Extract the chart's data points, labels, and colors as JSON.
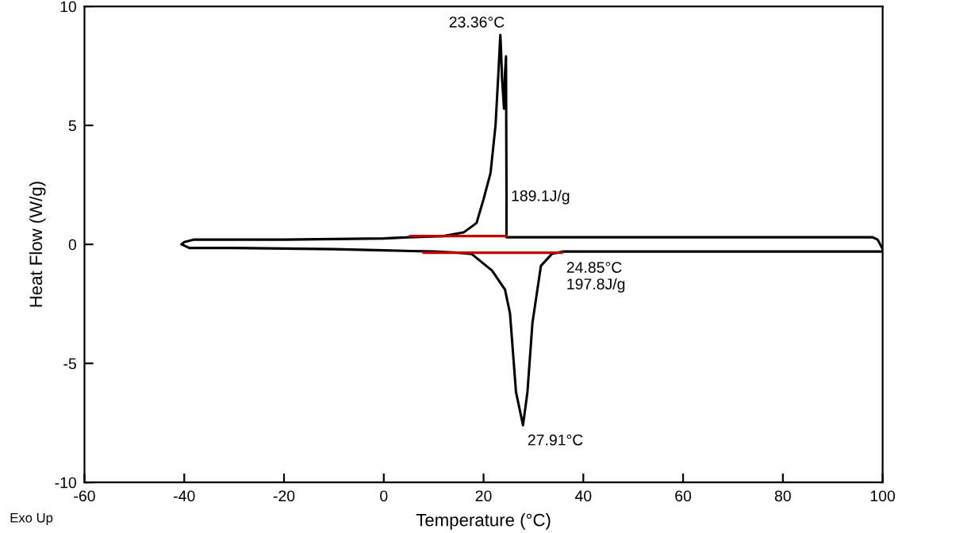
{
  "chart_data": {
    "type": "line",
    "xlabel": "Temperature (°C)",
    "ylabel": "Heat Flow (W/g)",
    "xlim": [
      -60,
      100
    ],
    "xticks": [
      -60,
      -40,
      -20,
      0,
      20,
      40,
      60,
      80,
      100
    ],
    "ylim": [
      -10,
      10
    ],
    "yticks": [
      -10,
      -5,
      0,
      5,
      10
    ],
    "grid": false,
    "legend": false,
    "marker": "none",
    "line_style": "solid",
    "series": [
      {
        "color": "#000000",
        "x": [
          100,
          99,
          98,
          90,
          70,
          50,
          35,
          26,
          24.6,
          24.6,
          24.5,
          24.3,
          24.1,
          23.7,
          23.5,
          23.36,
          23.0,
          22.4,
          21.4,
          20.0,
          18.6,
          16,
          12,
          5,
          0,
          -20,
          -38,
          -40,
          -40.5
        ],
        "values": [
          -0.2,
          0.2,
          0.3,
          0.3,
          0.3,
          0.3,
          0.3,
          0.3,
          0.3,
          2.1,
          7.9,
          7.2,
          5.7,
          7.0,
          8.2,
          8.8,
          7.3,
          5.0,
          3.0,
          1.9,
          0.9,
          0.5,
          0.35,
          0.3,
          0.25,
          0.2,
          0.2,
          0.1,
          0.0
        ]
      },
      {
        "color": "#000000",
        "x": [
          -40.5,
          -39,
          -30,
          -10,
          0,
          10,
          15,
          17.6,
          21.7,
          24.3,
          25.3,
          26.5,
          27.91,
          28.8,
          29.8,
          31.5,
          33.7,
          36,
          40,
          60,
          80,
          100
        ],
        "values": [
          0.0,
          -0.15,
          -0.15,
          -0.2,
          -0.25,
          -0.3,
          -0.35,
          -0.4,
          -1.1,
          -1.9,
          -2.9,
          -6.2,
          -7.6,
          -6.2,
          -3.3,
          -0.9,
          -0.4,
          -0.3,
          -0.3,
          -0.3,
          -0.3,
          -0.3
        ]
      },
      {
        "color": "#c00000",
        "x": [
          5.3,
          24.6
        ],
        "values": [
          0.35,
          0.35
        ]
      },
      {
        "color": "#c00000",
        "x": [
          8.0,
          35.7
        ],
        "values": [
          -0.35,
          -0.35
        ]
      }
    ],
    "annotations": [
      {
        "text": "23.36°C",
        "x": 23.36,
        "y": 8.8
      },
      {
        "text": "189.1J/g",
        "x": 24.6,
        "y": 1.5
      },
      {
        "text": "24.85°C\n197.8J/g",
        "x": 35.7,
        "y": -0.35
      },
      {
        "text": "27.91°C",
        "x": 27.91,
        "y": -7.6
      },
      "Exo Up"
    ]
  }
}
